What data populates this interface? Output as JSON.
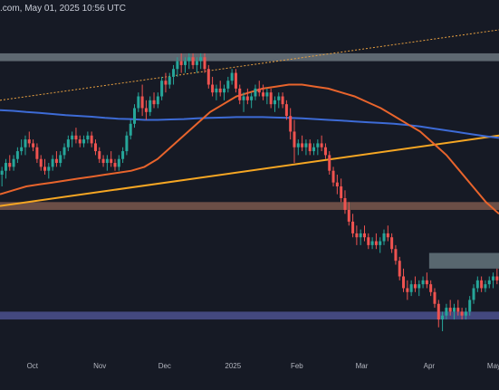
{
  "header": {
    "text": ".com, May 01, 2025 10:56 UTC"
  },
  "colors": {
    "background": "#161a25",
    "candle_up": "#26a69a",
    "candle_down": "#ef5350",
    "ma_fast": "#e8642c",
    "ma_slow": "#3d6bd6",
    "trend_support": "#f5a623",
    "trend_upper": "#e8a040",
    "zone_top": "#9aaab0",
    "zone_mid": "#b27a62",
    "zone_right": "#8fa7ad",
    "zone_bottom": "#6a70c8"
  },
  "chart_data": {
    "type": "candlestick",
    "title": "",
    "xlabel": "",
    "ylabel": "",
    "x_ticks": [
      "Oct",
      "Nov",
      "Dec",
      "2025",
      "Feb",
      "Mar",
      "Apr",
      "May"
    ],
    "grid": false,
    "candles": [
      [
        0.79,
        0.81,
        0.76,
        0.8
      ],
      [
        0.8,
        0.83,
        0.78,
        0.82
      ],
      [
        0.82,
        0.84,
        0.8,
        0.81
      ],
      [
        0.81,
        0.84,
        0.8,
        0.83
      ],
      [
        0.83,
        0.86,
        0.82,
        0.85
      ],
      [
        0.85,
        0.88,
        0.84,
        0.86
      ],
      [
        0.86,
        0.89,
        0.84,
        0.88
      ],
      [
        0.88,
        0.9,
        0.86,
        0.87
      ],
      [
        0.87,
        0.88,
        0.85,
        0.86
      ],
      [
        0.86,
        0.87,
        0.82,
        0.83
      ],
      [
        0.83,
        0.84,
        0.8,
        0.81
      ],
      [
        0.81,
        0.83,
        0.79,
        0.8
      ],
      [
        0.8,
        0.82,
        0.78,
        0.81
      ],
      [
        0.81,
        0.84,
        0.8,
        0.83
      ],
      [
        0.83,
        0.85,
        0.81,
        0.82
      ],
      [
        0.82,
        0.85,
        0.81,
        0.84
      ],
      [
        0.84,
        0.87,
        0.83,
        0.86
      ],
      [
        0.86,
        0.89,
        0.85,
        0.88
      ],
      [
        0.88,
        0.9,
        0.86,
        0.89
      ],
      [
        0.89,
        0.91,
        0.87,
        0.88
      ],
      [
        0.88,
        0.89,
        0.86,
        0.87
      ],
      [
        0.87,
        0.89,
        0.86,
        0.88
      ],
      [
        0.88,
        0.9,
        0.87,
        0.89
      ],
      [
        0.89,
        0.9,
        0.86,
        0.87
      ],
      [
        0.87,
        0.88,
        0.84,
        0.85
      ],
      [
        0.85,
        0.86,
        0.82,
        0.83
      ],
      [
        0.83,
        0.84,
        0.81,
        0.82
      ],
      [
        0.82,
        0.84,
        0.8,
        0.83
      ],
      [
        0.83,
        0.85,
        0.81,
        0.82
      ],
      [
        0.82,
        0.83,
        0.8,
        0.81
      ],
      [
        0.81,
        0.84,
        0.8,
        0.83
      ],
      [
        0.83,
        0.86,
        0.82,
        0.85
      ],
      [
        0.85,
        0.9,
        0.84,
        0.89
      ],
      [
        0.89,
        0.93,
        0.88,
        0.92
      ],
      [
        0.92,
        0.97,
        0.91,
        0.96
      ],
      [
        0.96,
        1.0,
        0.95,
        0.99
      ],
      [
        0.99,
        1.02,
        0.94,
        0.96
      ],
      [
        0.96,
        0.98,
        0.93,
        0.95
      ],
      [
        0.95,
        0.99,
        0.94,
        0.98
      ],
      [
        0.98,
        1.0,
        0.96,
        0.97
      ],
      [
        0.97,
        1.0,
        0.96,
        0.99
      ],
      [
        0.99,
        1.04,
        0.98,
        1.03
      ],
      [
        1.03,
        1.05,
        1.0,
        1.02
      ],
      [
        1.02,
        1.05,
        1.01,
        1.04
      ],
      [
        1.04,
        1.07,
        1.02,
        1.06
      ],
      [
        1.06,
        1.09,
        1.04,
        1.08
      ],
      [
        1.08,
        1.1,
        1.05,
        1.07
      ],
      [
        1.07,
        1.09,
        1.05,
        1.08
      ],
      [
        1.08,
        1.1,
        1.06,
        1.09
      ],
      [
        1.09,
        1.1,
        1.06,
        1.07
      ],
      [
        1.07,
        1.09,
        1.05,
        1.08
      ],
      [
        1.08,
        1.1,
        1.06,
        1.09
      ],
      [
        1.09,
        1.1,
        1.05,
        1.06
      ],
      [
        1.06,
        1.07,
        1.01,
        1.02
      ],
      [
        1.02,
        1.04,
        0.99,
        1.0
      ],
      [
        1.0,
        1.02,
        0.98,
        1.01
      ],
      [
        1.01,
        1.03,
        0.99,
        1.0
      ],
      [
        1.0,
        1.02,
        0.98,
        1.01
      ],
      [
        1.01,
        1.04,
        1.0,
        1.03
      ],
      [
        1.03,
        1.06,
        1.02,
        1.05
      ],
      [
        1.05,
        1.06,
        1.0,
        1.01
      ],
      [
        1.01,
        1.02,
        0.97,
        0.98
      ],
      [
        0.98,
        1.0,
        0.95,
        0.99
      ],
      [
        0.99,
        1.01,
        0.97,
        0.98
      ],
      [
        0.98,
        1.0,
        0.96,
        0.99
      ],
      [
        0.99,
        1.02,
        0.98,
        1.01
      ],
      [
        1.01,
        1.03,
        0.99,
        1.0
      ],
      [
        1.0,
        1.02,
        0.98,
        0.99
      ],
      [
        0.99,
        1.01,
        0.97,
        1.0
      ],
      [
        1.0,
        1.01,
        0.96,
        0.97
      ],
      [
        0.97,
        0.99,
        0.95,
        0.98
      ],
      [
        0.98,
        1.0,
        0.96,
        0.99
      ],
      [
        0.99,
        1.0,
        0.96,
        0.97
      ],
      [
        0.97,
        0.98,
        0.93,
        0.94
      ],
      [
        0.94,
        0.96,
        0.88,
        0.9
      ],
      [
        0.9,
        0.93,
        0.82,
        0.86
      ],
      [
        0.86,
        0.88,
        0.84,
        0.87
      ],
      [
        0.87,
        0.89,
        0.85,
        0.86
      ],
      [
        0.86,
        0.88,
        0.84,
        0.87
      ],
      [
        0.87,
        0.88,
        0.84,
        0.85
      ],
      [
        0.85,
        0.87,
        0.84,
        0.86
      ],
      [
        0.86,
        0.88,
        0.84,
        0.87
      ],
      [
        0.87,
        0.89,
        0.85,
        0.86
      ],
      [
        0.86,
        0.87,
        0.83,
        0.84
      ],
      [
        0.84,
        0.85,
        0.79,
        0.8
      ],
      [
        0.8,
        0.81,
        0.76,
        0.77
      ],
      [
        0.77,
        0.79,
        0.74,
        0.76
      ],
      [
        0.76,
        0.78,
        0.72,
        0.73
      ],
      [
        0.73,
        0.75,
        0.69,
        0.7
      ],
      [
        0.7,
        0.72,
        0.66,
        0.67
      ],
      [
        0.67,
        0.69,
        0.63,
        0.64
      ],
      [
        0.64,
        0.66,
        0.61,
        0.63
      ],
      [
        0.63,
        0.65,
        0.61,
        0.64
      ],
      [
        0.64,
        0.66,
        0.62,
        0.63
      ],
      [
        0.63,
        0.64,
        0.6,
        0.61
      ],
      [
        0.61,
        0.63,
        0.6,
        0.62
      ],
      [
        0.62,
        0.64,
        0.6,
        0.61
      ],
      [
        0.61,
        0.63,
        0.59,
        0.62
      ],
      [
        0.62,
        0.65,
        0.61,
        0.64
      ],
      [
        0.64,
        0.66,
        0.62,
        0.63
      ],
      [
        0.63,
        0.64,
        0.59,
        0.6
      ],
      [
        0.6,
        0.61,
        0.56,
        0.57
      ],
      [
        0.57,
        0.58,
        0.52,
        0.53
      ],
      [
        0.53,
        0.55,
        0.49,
        0.5
      ],
      [
        0.5,
        0.52,
        0.47,
        0.49
      ],
      [
        0.49,
        0.52,
        0.48,
        0.51
      ],
      [
        0.51,
        0.53,
        0.49,
        0.5
      ],
      [
        0.5,
        0.52,
        0.48,
        0.51
      ],
      [
        0.51,
        0.53,
        0.5,
        0.52
      ],
      [
        0.52,
        0.54,
        0.5,
        0.51
      ],
      [
        0.51,
        0.52,
        0.48,
        0.49
      ],
      [
        0.49,
        0.5,
        0.45,
        0.46
      ],
      [
        0.46,
        0.47,
        0.4,
        0.42
      ],
      [
        0.42,
        0.44,
        0.39,
        0.43
      ],
      [
        0.43,
        0.46,
        0.42,
        0.45
      ],
      [
        0.45,
        0.47,
        0.43,
        0.44
      ],
      [
        0.44,
        0.46,
        0.42,
        0.45
      ],
      [
        0.45,
        0.47,
        0.43,
        0.44
      ],
      [
        0.44,
        0.45,
        0.42,
        0.43
      ],
      [
        0.43,
        0.45,
        0.42,
        0.44
      ],
      [
        0.44,
        0.48,
        0.43,
        0.47
      ],
      [
        0.47,
        0.51,
        0.46,
        0.5
      ],
      [
        0.5,
        0.53,
        0.49,
        0.52
      ],
      [
        0.52,
        0.53,
        0.49,
        0.5
      ],
      [
        0.5,
        0.52,
        0.49,
        0.51
      ],
      [
        0.51,
        0.53,
        0.5,
        0.52
      ],
      [
        0.52,
        0.54,
        0.5,
        0.53
      ],
      [
        0.53,
        0.55,
        0.51,
        0.52
      ]
    ],
    "ma_fast": [
      0.74,
      0.75,
      0.76,
      0.765,
      0.77,
      0.775,
      0.78,
      0.785,
      0.79,
      0.795,
      0.8,
      0.81,
      0.83,
      0.86,
      0.89,
      0.92,
      0.95,
      0.97,
      0.99,
      1.0,
      1.01,
      1.015,
      1.02,
      1.02,
      1.015,
      1.01,
      1.0,
      0.99,
      0.975,
      0.96,
      0.94,
      0.92,
      0.9,
      0.87,
      0.84,
      0.8,
      0.76,
      0.72,
      0.69
    ],
    "ma_slow": [
      0.955,
      0.953,
      0.95,
      0.948,
      0.945,
      0.942,
      0.94,
      0.938,
      0.935,
      0.933,
      0.932,
      0.93,
      0.93,
      0.931,
      0.932,
      0.934,
      0.935,
      0.936,
      0.937,
      0.937,
      0.937,
      0.936,
      0.935,
      0.934,
      0.932,
      0.93,
      0.928,
      0.926,
      0.924,
      0.922,
      0.92,
      0.917,
      0.913,
      0.908,
      0.903,
      0.898,
      0.893,
      0.888,
      0.884
    ],
    "trend_support": {
      "start": 0.71,
      "end": 0.89
    },
    "trend_upper": {
      "start": 0.98,
      "end": 1.16
    },
    "zones": [
      {
        "name": "upper-resistance",
        "y0": 1.08,
        "y1": 1.1,
        "from": 0.0,
        "to": 1.0
      },
      {
        "name": "mid-support",
        "y0": 0.7,
        "y1": 0.72,
        "from": 0.0,
        "to": 1.0
      },
      {
        "name": "right-resistance",
        "y0": 0.55,
        "y1": 0.59,
        "from": 0.86,
        "to": 1.0
      },
      {
        "name": "lower-support",
        "y0": 0.42,
        "y1": 0.44,
        "from": 0.0,
        "to": 1.0
      }
    ],
    "ylim": [
      0.33,
      1.19
    ]
  }
}
